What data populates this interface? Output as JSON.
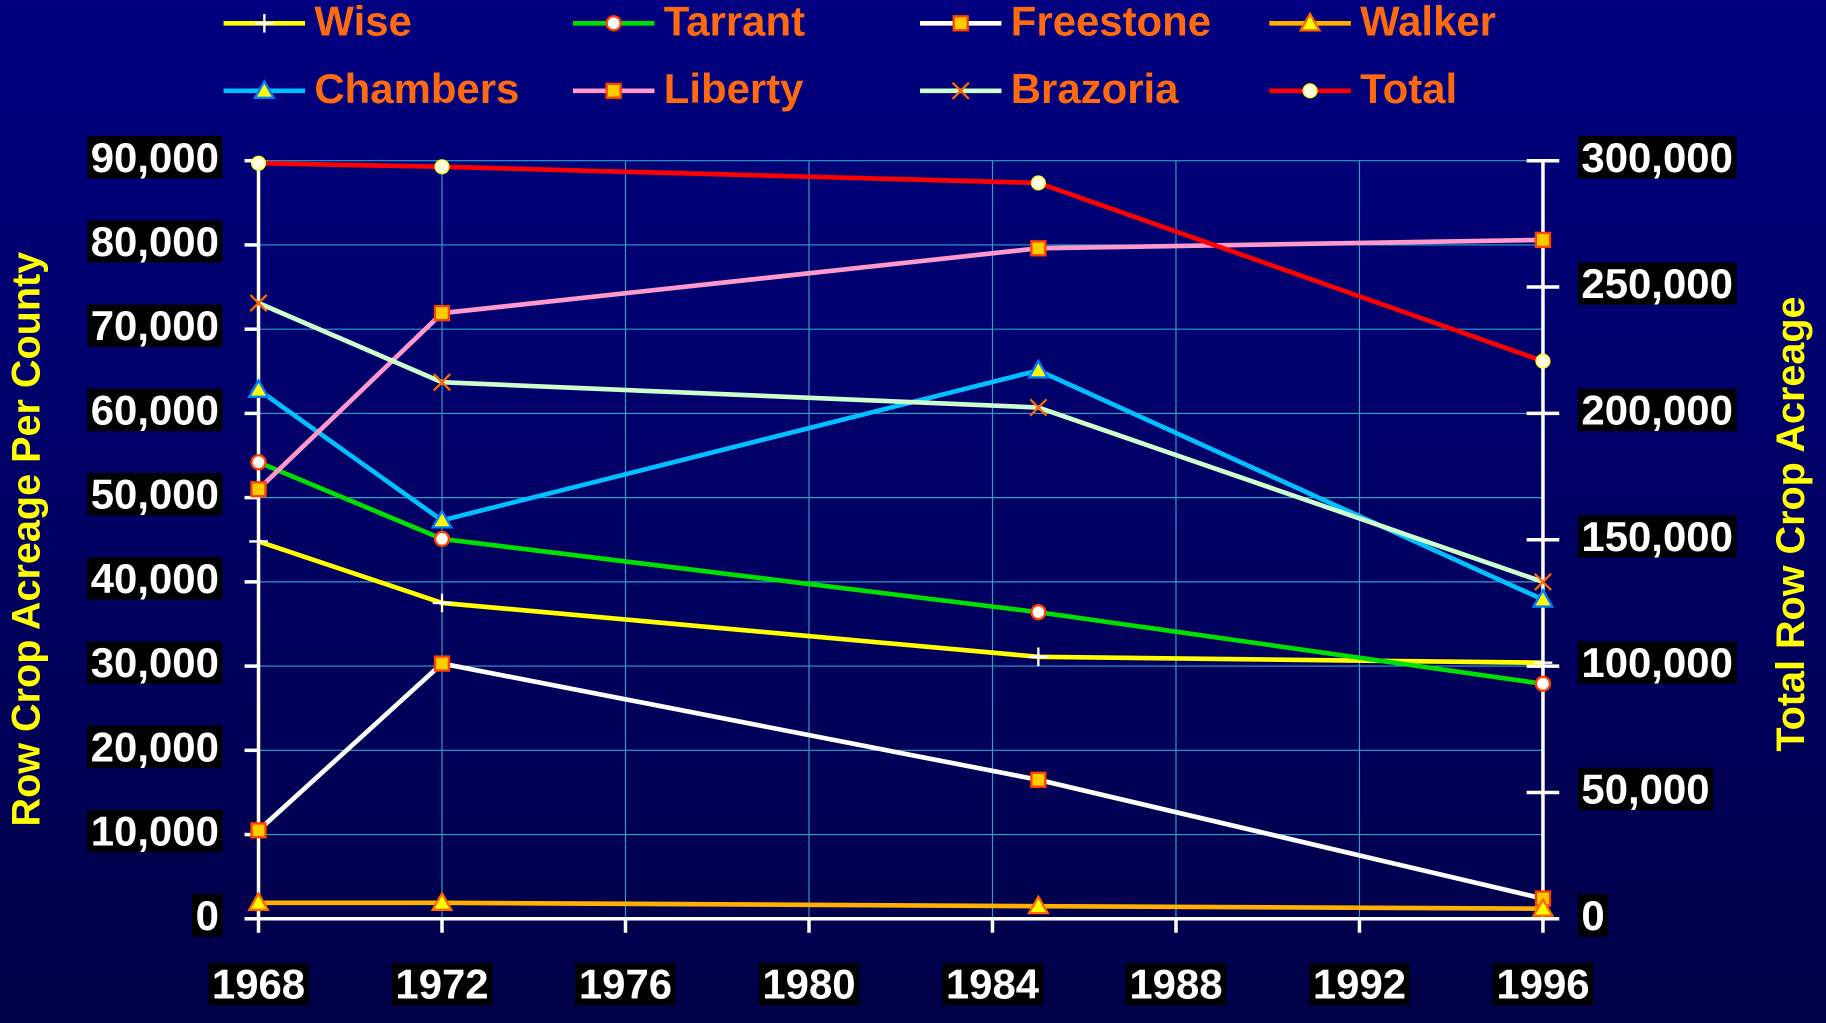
{
  "chart_data": {
    "type": "line",
    "y_axis_label": "Row Crop Acreage Per County",
    "y2_axis_label": "Total Row Crop Acreage",
    "x": [
      1968,
      1972,
      1985,
      1996
    ],
    "xlim": [
      1968,
      1996
    ],
    "xticks": [
      1968,
      1972,
      1976,
      1980,
      1984,
      1988,
      1992,
      1996
    ],
    "ylim": [
      0,
      90000
    ],
    "yticks": [
      0,
      {
        "value": 10000,
        "label": "10,000"
      },
      {
        "value": 20000,
        "label": "20,000"
      },
      {
        "value": 30000,
        "label": "30,000"
      },
      {
        "value": 40000,
        "label": "40,000"
      },
      {
        "value": 50000,
        "label": "50,000"
      },
      {
        "value": 60000,
        "label": "60,000"
      },
      {
        "value": 70000,
        "label": "70,000"
      },
      {
        "value": 80000,
        "label": "80,000"
      },
      {
        "value": 90000,
        "label": "90,000"
      }
    ],
    "y2lim": [
      0,
      300000
    ],
    "y2ticks": [
      0,
      {
        "value": 50000,
        "label": "50,000"
      },
      {
        "value": 100000,
        "label": "100,000"
      },
      {
        "value": 150000,
        "label": "150,000"
      },
      {
        "value": 200000,
        "label": "200,000"
      },
      {
        "value": 250000,
        "label": "250,000"
      },
      {
        "value": 300000,
        "label": "300,000"
      }
    ],
    "grid": true,
    "legend": "top",
    "series": [
      {
        "name": "Wise",
        "color": "#ffff00",
        "marker": "plus",
        "values": [
          44800,
          37500,
          31100,
          30400
        ]
      },
      {
        "name": "Tarrant",
        "color": "#00e000",
        "marker": "circle",
        "values": [
          54200,
          45100,
          36400,
          27900
        ]
      },
      {
        "name": "Freestone",
        "color": "#ffffff",
        "marker": "square",
        "values": [
          10500,
          30300,
          16500,
          2400
        ]
      },
      {
        "name": "Walker",
        "color": "#ffb000",
        "marker": "triangle",
        "values": [
          1900,
          1900,
          1500,
          1200
        ]
      },
      {
        "name": "Chambers",
        "color": "#00c0ff",
        "marker": "triangle",
        "values": [
          62800,
          47300,
          65100,
          37900
        ]
      },
      {
        "name": "Liberty",
        "color": "#ff99cc",
        "marker": "square",
        "values": [
          51000,
          71900,
          79600,
          80600
        ]
      },
      {
        "name": "Brazoria",
        "color": "#ccffcc",
        "marker": "x",
        "values": [
          73100,
          63700,
          60700,
          40000
        ]
      },
      {
        "name": "Total",
        "color": "#ff0000",
        "marker": "dot",
        "axis": "y2",
        "values": [
          299000,
          297600,
          291200,
          220700
        ]
      }
    ]
  }
}
